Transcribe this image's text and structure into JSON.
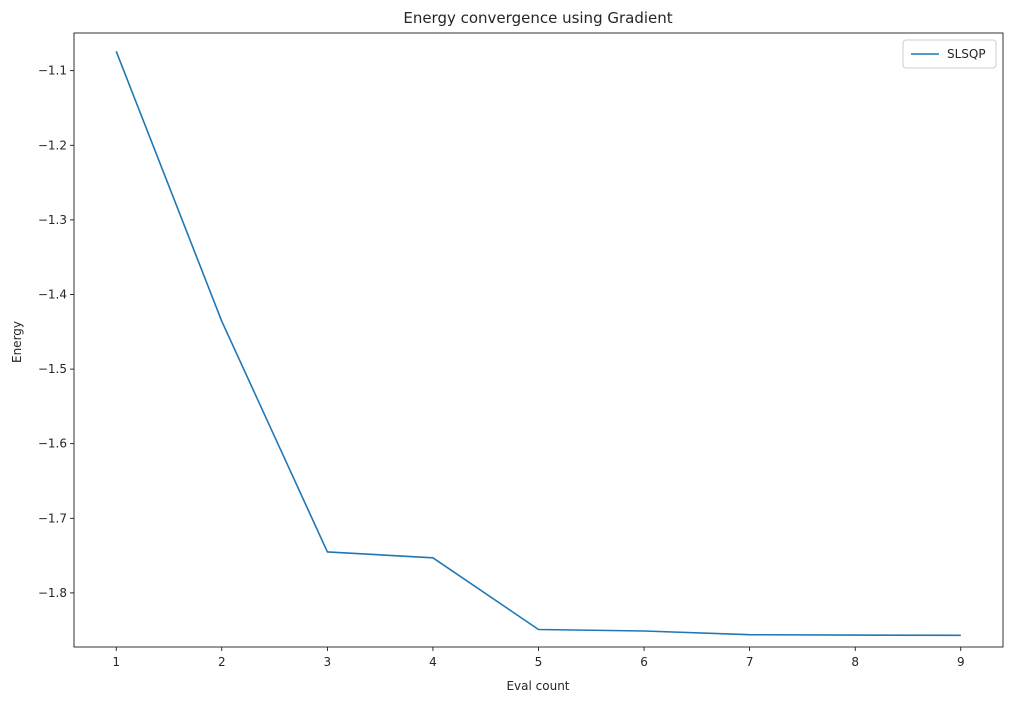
{
  "chart_data": {
    "type": "line",
    "title": "Energy convergence using Gradient",
    "xlabel": "Eval count",
    "ylabel": "Energy",
    "xlim": [
      0.6,
      9.4
    ],
    "ylim": [
      -1.8725,
      -1.0495
    ],
    "xticks": [
      1,
      2,
      3,
      4,
      5,
      6,
      7,
      8,
      9
    ],
    "yticks": [
      -1.8,
      -1.7,
      -1.6,
      -1.5,
      -1.4,
      -1.3,
      -1.2,
      -1.1
    ],
    "ytick_labels": [
      "−1.8",
      "−1.7",
      "−1.6",
      "−1.5",
      "−1.4",
      "−1.3",
      "−1.2",
      "−1.1"
    ],
    "grid": false,
    "legend_position": "top-right",
    "series": [
      {
        "name": "SLSQP",
        "color": "#1f77b4",
        "x": [
          1,
          2,
          3,
          4,
          5,
          6,
          7,
          8,
          9
        ],
        "y": [
          -1.074,
          -1.436,
          -1.745,
          -1.753,
          -1.849,
          -1.851,
          -1.856,
          -1.8565,
          -1.8568
        ]
      }
    ]
  }
}
